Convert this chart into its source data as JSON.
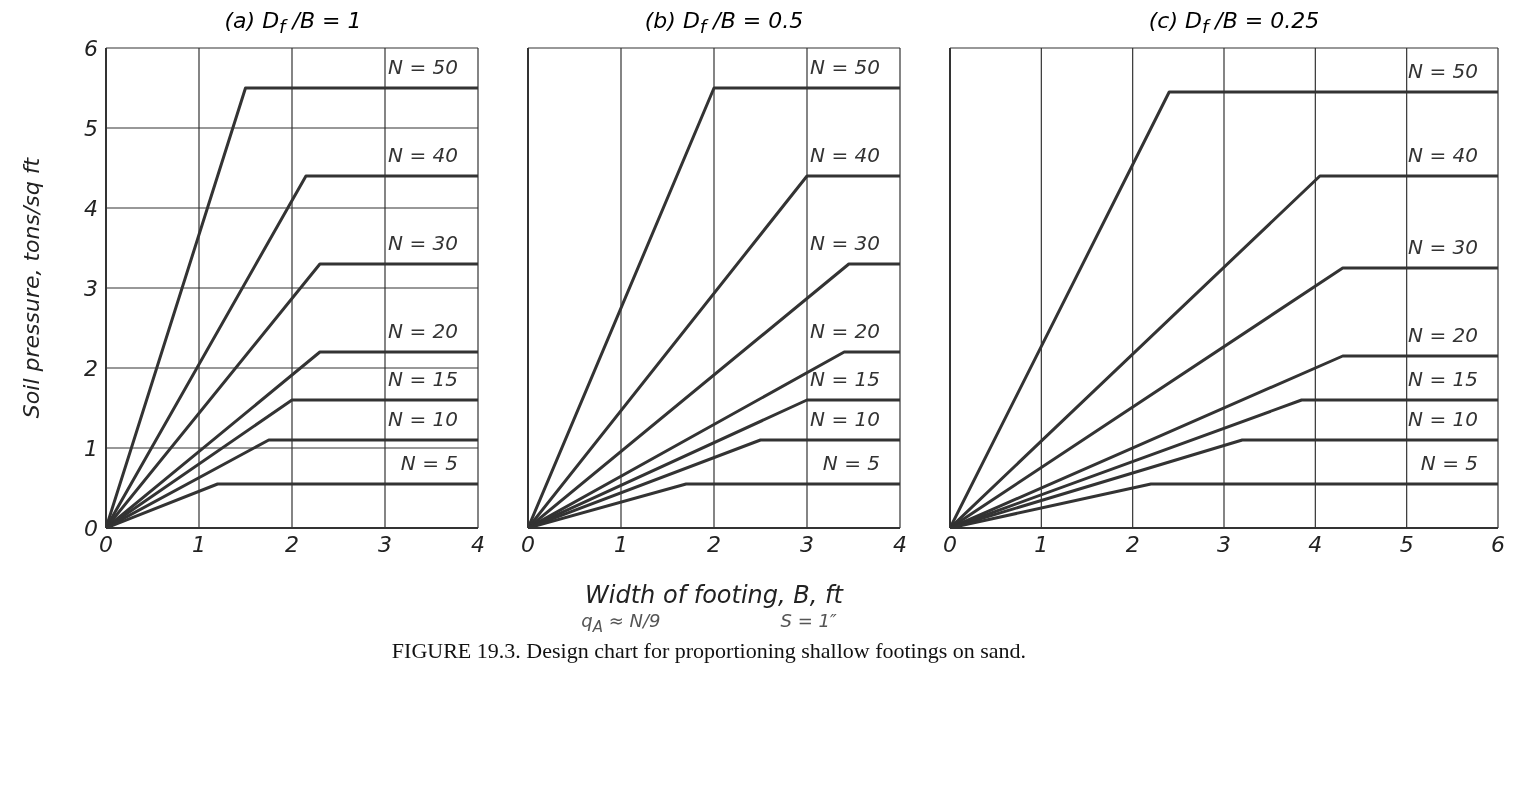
{
  "chart_data": [
    {
      "type": "line",
      "title": "(a) D$_{f}$ /B = 1",
      "ylabel": "Soil pressure, tons/sq ft",
      "xlim": [
        0,
        4
      ],
      "xticks": [
        0,
        1,
        2,
        3,
        4
      ],
      "ylim": [
        0,
        6
      ],
      "yticks": [
        0,
        1,
        2,
        3,
        4,
        5,
        6
      ],
      "grid": true,
      "legend": false,
      "marker": "none",
      "line_style": "solid",
      "series": [
        {
          "name": "N = 50",
          "color": "#333333",
          "x": [
            0,
            1.5,
            4
          ],
          "values": [
            0,
            5.5,
            5.5
          ]
        },
        {
          "name": "N = 40",
          "color": "#333333",
          "x": [
            0,
            2.15,
            4
          ],
          "values": [
            0,
            4.4,
            4.4
          ]
        },
        {
          "name": "N = 30",
          "color": "#333333",
          "x": [
            0,
            2.3,
            4
          ],
          "values": [
            0,
            3.3,
            3.3
          ]
        },
        {
          "name": "N = 20",
          "color": "#333333",
          "x": [
            0,
            2.3,
            4
          ],
          "values": [
            0,
            2.2,
            2.2
          ]
        },
        {
          "name": "N = 15",
          "color": "#333333",
          "x": [
            0,
            2.0,
            4
          ],
          "values": [
            0,
            1.6,
            1.6
          ]
        },
        {
          "name": "N = 10",
          "color": "#333333",
          "x": [
            0,
            1.75,
            4
          ],
          "values": [
            0,
            1.1,
            1.1
          ]
        },
        {
          "name": "N = 5",
          "color": "#333333",
          "x": [
            0,
            1.2,
            4
          ],
          "values": [
            0,
            0.55,
            0.55
          ]
        }
      ]
    },
    {
      "type": "line",
      "title": "(b) D$_{f}$ /B = 0.5",
      "xlabel": "Width of footing, B, ft",
      "xlim": [
        0,
        4
      ],
      "xticks": [
        0,
        1,
        2,
        3,
        4
      ],
      "ylim": [
        0,
        6
      ],
      "yticks": [
        0,
        1,
        2,
        3,
        4,
        5,
        6
      ],
      "tick_labels": "x",
      "grid": true,
      "legend": false,
      "marker": "none",
      "line_style": "solid",
      "annotations": [
        "q$_{A}$ ≈ N/9",
        "S = 1″",
        "FIGURE 19.3. Design chart for proportioning shallow footings on sand."
      ],
      "series": [
        {
          "name": "N = 50",
          "color": "#333333",
          "x": [
            0,
            2.0,
            4
          ],
          "values": [
            0,
            5.5,
            5.5
          ]
        },
        {
          "name": "N = 40",
          "color": "#333333",
          "x": [
            0,
            3.0,
            4
          ],
          "values": [
            0,
            4.4,
            4.4
          ]
        },
        {
          "name": "N = 30",
          "color": "#333333",
          "x": [
            0,
            3.45,
            4
          ],
          "values": [
            0,
            3.3,
            3.3
          ]
        },
        {
          "name": "N = 20",
          "color": "#333333",
          "x": [
            0,
            3.4,
            4
          ],
          "values": [
            0,
            2.2,
            2.2
          ]
        },
        {
          "name": "N = 15",
          "color": "#333333",
          "x": [
            0,
            3.0,
            4
          ],
          "values": [
            0,
            1.6,
            1.6
          ]
        },
        {
          "name": "N = 10",
          "color": "#333333",
          "x": [
            0,
            2.5,
            4
          ],
          "values": [
            0,
            1.1,
            1.1
          ]
        },
        {
          "name": "N = 5",
          "color": "#333333",
          "x": [
            0,
            1.7,
            4
          ],
          "values": [
            0,
            0.55,
            0.55
          ]
        }
      ]
    },
    {
      "type": "line",
      "title": "(c) D$_{f}$ /B = 0.25",
      "xlim": [
        0,
        6
      ],
      "xticks": [
        0,
        1,
        2,
        3,
        4,
        5,
        6
      ],
      "ylim": [
        0,
        6
      ],
      "yticks": [
        0,
        1,
        2,
        3,
        4,
        5,
        6
      ],
      "tick_labels": "x",
      "grid": true,
      "legend": false,
      "marker": "none",
      "line_style": "solid",
      "series": [
        {
          "name": "N = 50",
          "color": "#333333",
          "x": [
            0,
            2.4,
            6
          ],
          "values": [
            0,
            5.45,
            5.45
          ]
        },
        {
          "name": "N = 40",
          "color": "#333333",
          "x": [
            0,
            4.05,
            6
          ],
          "values": [
            0,
            4.4,
            4.4
          ]
        },
        {
          "name": "N = 30",
          "color": "#333333",
          "x": [
            0,
            4.3,
            6
          ],
          "values": [
            0,
            3.25,
            3.25
          ]
        },
        {
          "name": "N = 20",
          "color": "#333333",
          "x": [
            0,
            4.3,
            6
          ],
          "values": [
            0,
            2.15,
            2.15
          ]
        },
        {
          "name": "N = 15",
          "color": "#333333",
          "x": [
            0,
            3.85,
            6
          ],
          "values": [
            0,
            1.6,
            1.6
          ]
        },
        {
          "name": "N = 10",
          "color": "#333333",
          "x": [
            0,
            3.2,
            6
          ],
          "values": [
            0,
            1.1,
            1.1
          ]
        },
        {
          "name": "N = 5",
          "color": "#333333",
          "x": [
            0,
            2.2,
            6
          ],
          "values": [
            0,
            0.55,
            0.55
          ]
        }
      ]
    }
  ]
}
